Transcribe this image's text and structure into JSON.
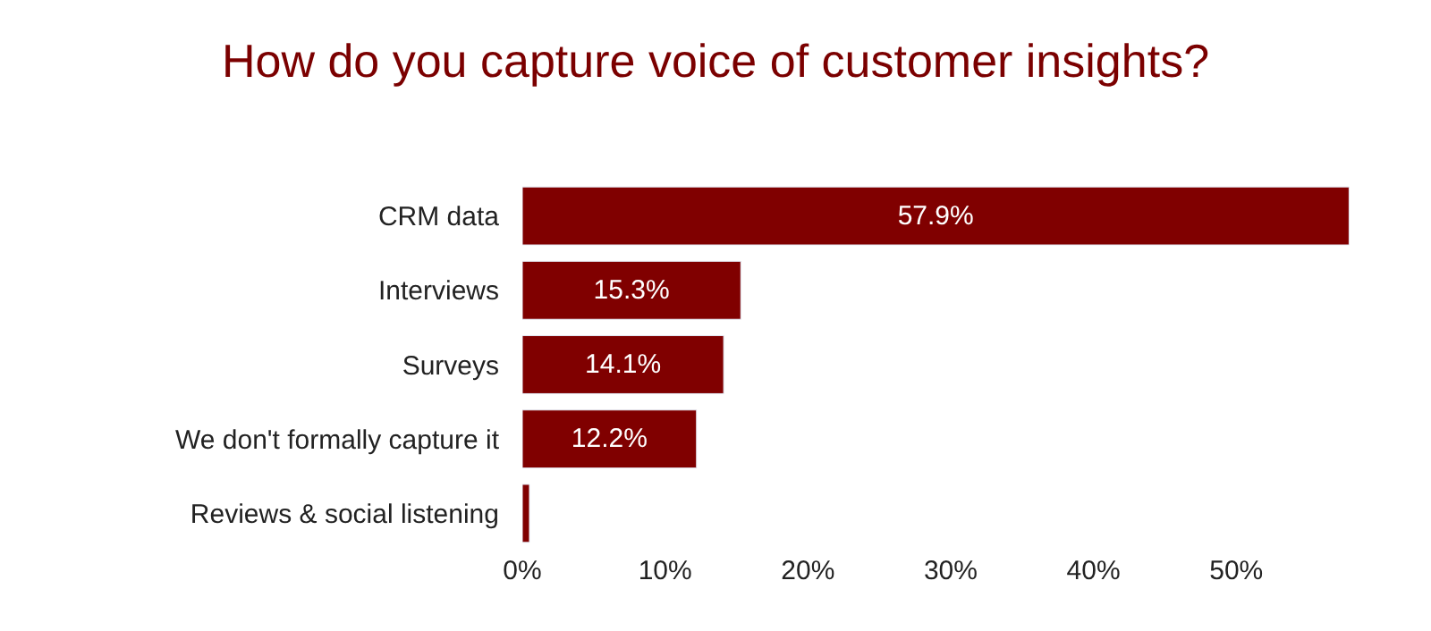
{
  "chart_data": {
    "type": "bar",
    "orientation": "horizontal",
    "title": "How do you capture voice of customer insights?",
    "categories": [
      "CRM data",
      "Interviews",
      "Surveys",
      "We don't formally capture it",
      "Reviews & social listening"
    ],
    "values": [
      57.9,
      15.3,
      14.1,
      12.2,
      0.5
    ],
    "value_labels": [
      "57.9%",
      "15.3%",
      "14.1%",
      "12.2%",
      null
    ],
    "color": "#800000",
    "xlim": [
      0,
      58
    ],
    "xticks": [
      {
        "value": 0,
        "label": "0%"
      },
      {
        "value": 10,
        "label": "10%"
      },
      {
        "value": 20,
        "label": "20%"
      },
      {
        "value": 30,
        "label": "30%"
      },
      {
        "value": 40,
        "label": "40%"
      },
      {
        "value": 50,
        "label": "50%"
      }
    ],
    "legend": false
  }
}
